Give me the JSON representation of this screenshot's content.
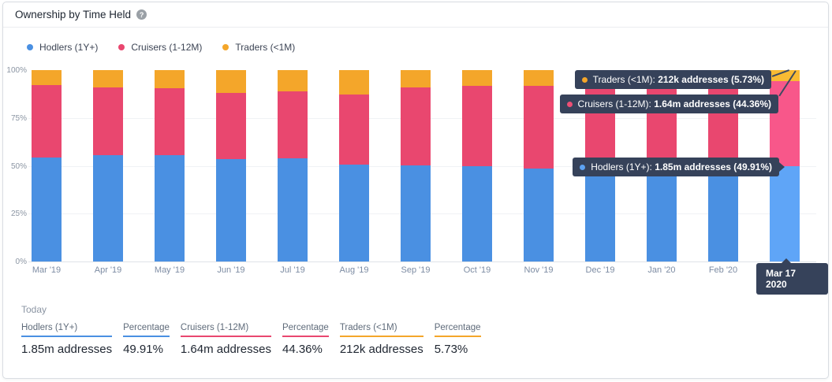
{
  "card": {
    "title": "Ownership by Time Held",
    "help_icon": "?"
  },
  "legend": [
    {
      "label": "Hodlers (1Y+)",
      "color": "#4a90e2"
    },
    {
      "label": "Cruisers (1-12M)",
      "color": "#e9476f"
    },
    {
      "label": "Traders (<1M)",
      "color": "#f4a62a"
    }
  ],
  "chart_data": {
    "type": "bar",
    "stacked": true,
    "unit": "percent",
    "title": "Ownership by Time Held",
    "categories": [
      "Mar '19",
      "Apr '19",
      "May '19",
      "Jun '19",
      "Jul '19",
      "Aug '19",
      "Sep '19",
      "Oct '19",
      "Nov '19",
      "Dec '19",
      "Jan '20",
      "Feb '20",
      "Mar 17 2020"
    ],
    "series": [
      {
        "name": "Hodlers (1Y+)",
        "color": "#4a90e2",
        "highlight_color": "#5fa5f7",
        "values": [
          54.5,
          55.4,
          55.7,
          53.4,
          53.8,
          50.7,
          50.3,
          49.8,
          48.4,
          49.3,
          49.2,
          49.4,
          49.91
        ]
      },
      {
        "name": "Cruisers (1-12M)",
        "color": "#e9476f",
        "highlight_color": "#f8578a",
        "values": [
          37.5,
          35.6,
          34.8,
          34.6,
          35.3,
          36.4,
          40.5,
          42.1,
          43.5,
          43.3,
          43.6,
          43.7,
          44.36
        ]
      },
      {
        "name": "Traders (<1M)",
        "color": "#f4a62a",
        "highlight_color": "#f9bb33",
        "values": [
          8.0,
          9.0,
          9.5,
          12.0,
          10.9,
          12.9,
          9.2,
          8.1,
          8.1,
          7.4,
          7.2,
          6.9,
          5.73
        ]
      }
    ],
    "highlighted_index": 12,
    "y_ticks": [
      {
        "value": 100,
        "label": "100%"
      },
      {
        "value": 75,
        "label": "75%"
      },
      {
        "value": 50,
        "label": "50%"
      },
      {
        "value": 25,
        "label": "25%"
      },
      {
        "value": 0,
        "label": "0%"
      }
    ],
    "ylim": [
      0,
      100
    ],
    "grid": "horizontal",
    "legend_position": "top-left"
  },
  "tooltips": [
    {
      "label": "Traders (<1M):",
      "value": "212k addresses (5.73%)",
      "color": "#f4a62a"
    },
    {
      "label": "Cruisers (1-12M):",
      "value": "1.64m addresses (44.36%)",
      "color": "#ee4f75"
    },
    {
      "label": "Hodlers (1Y+):",
      "value": "1.85m addresses (49.91%)",
      "color": "#5da2f2"
    }
  ],
  "highlight_badge": "Mar 17 2020",
  "today": {
    "heading": "Today",
    "stats": [
      {
        "label": "Hodlers (1Y+)",
        "value": "1.85m addresses",
        "color": "#4a90e2"
      },
      {
        "label": "Percentage",
        "value": "49.91%",
        "color": "#4a90e2"
      },
      {
        "label": "Cruisers (1-12M)",
        "value": "1.64m addresses",
        "color": "#e9476f"
      },
      {
        "label": "Percentage",
        "value": "44.36%",
        "color": "#e9476f"
      },
      {
        "label": "Traders (<1M)",
        "value": "212k addresses",
        "color": "#f4a62a"
      },
      {
        "label": "Percentage",
        "value": "5.73%",
        "color": "#f4a62a"
      }
    ]
  }
}
